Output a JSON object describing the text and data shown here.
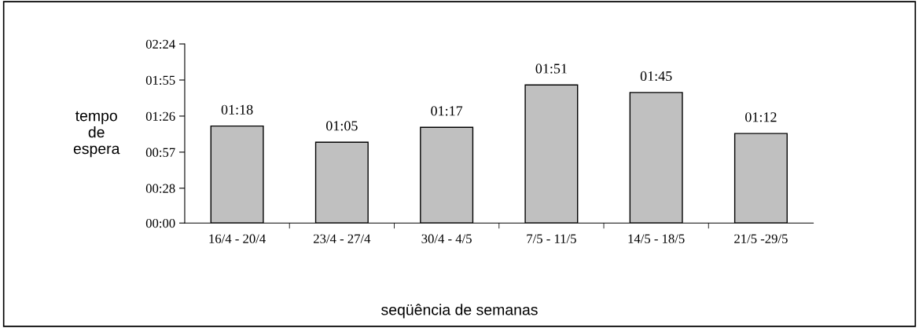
{
  "chart_data": {
    "type": "bar",
    "xlabel": "seqüência de semanas",
    "ylabel": "tempo\nde\nespera",
    "categories": [
      "16/4 - 20/4",
      "23/4 - 27/4",
      "30/4 - 4/5",
      "7/5 - 11/5",
      "14/5 - 18/5",
      "21/5 -29/5"
    ],
    "values": [
      78,
      65,
      77,
      111,
      105,
      72
    ],
    "value_labels": [
      "01:18",
      "01:05",
      "01:17",
      "01:51",
      "01:45",
      "01:12"
    ],
    "color": "#c0c0c0",
    "ylim": [
      0,
      144
    ],
    "yticks": [
      {
        "value": 0,
        "label": "00:00"
      },
      {
        "value": 28,
        "label": "00:28"
      },
      {
        "value": 57,
        "label": "00:57"
      },
      {
        "value": 86,
        "label": "01:26"
      },
      {
        "value": 115,
        "label": "01:55"
      },
      {
        "value": 144,
        "label": "02:24"
      }
    ],
    "grid": false,
    "legend": false
  }
}
